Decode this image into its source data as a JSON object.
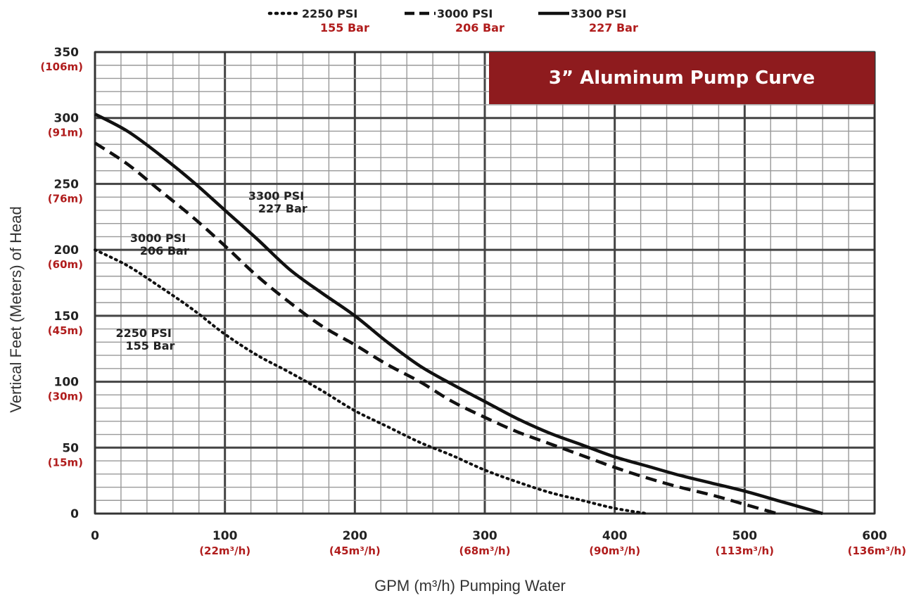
{
  "chart_data": {
    "type": "line",
    "title": "3” Aluminum Pump Curve",
    "xlabel": "GPM (m³/h) Pumping Water",
    "ylabel": "Vertical Feet (Meters) of Head",
    "xlim": [
      0,
      600
    ],
    "ylim": [
      0,
      350
    ],
    "grid": true,
    "legend_position": "top",
    "x_ticks": [
      {
        "value": 0,
        "label": "0",
        "sub": ""
      },
      {
        "value": 100,
        "label": "100",
        "sub": "(22m³/h)"
      },
      {
        "value": 200,
        "label": "200",
        "sub": "(45m³/h)"
      },
      {
        "value": 300,
        "label": "300",
        "sub": "(68m³/h)"
      },
      {
        "value": 400,
        "label": "400",
        "sub": "(90m³/h)"
      },
      {
        "value": 500,
        "label": "500",
        "sub": "(113m³/h)"
      },
      {
        "value": 600,
        "label": "600",
        "sub": "(136m³/h)"
      }
    ],
    "y_ticks": [
      {
        "value": 0,
        "label": "0",
        "sub": ""
      },
      {
        "value": 50,
        "label": "50",
        "sub": "(15m)"
      },
      {
        "value": 100,
        "label": "100",
        "sub": "(30m)"
      },
      {
        "value": 150,
        "label": "150",
        "sub": "(45m)"
      },
      {
        "value": 200,
        "label": "200",
        "sub": "(60m)"
      },
      {
        "value": 250,
        "label": "250",
        "sub": "(76m)"
      },
      {
        "value": 300,
        "label": "300",
        "sub": "(91m)"
      },
      {
        "value": 350,
        "label": "350",
        "sub": "(106m)"
      }
    ],
    "series": [
      {
        "name": "2250 PSI",
        "name_sub": "155 Bar",
        "style": "dotted",
        "color": "#111111",
        "points": [
          [
            0,
            200
          ],
          [
            25,
            188
          ],
          [
            50,
            172
          ],
          [
            75,
            155
          ],
          [
            100,
            136
          ],
          [
            125,
            120
          ],
          [
            150,
            107
          ],
          [
            175,
            93
          ],
          [
            200,
            78
          ],
          [
            225,
            66
          ],
          [
            250,
            54
          ],
          [
            275,
            44
          ],
          [
            300,
            33
          ],
          [
            325,
            24
          ],
          [
            350,
            16
          ],
          [
            375,
            10
          ],
          [
            400,
            4
          ],
          [
            425,
            0
          ]
        ]
      },
      {
        "name": "3000 PSI",
        "name_sub": "206 Bar",
        "style": "dashed",
        "color": "#111111",
        "points": [
          [
            0,
            281
          ],
          [
            25,
            265
          ],
          [
            50,
            245
          ],
          [
            75,
            225
          ],
          [
            100,
            203
          ],
          [
            125,
            180
          ],
          [
            150,
            160
          ],
          [
            175,
            142
          ],
          [
            200,
            128
          ],
          [
            225,
            113
          ],
          [
            250,
            100
          ],
          [
            275,
            85
          ],
          [
            300,
            73
          ],
          [
            325,
            62
          ],
          [
            350,
            53
          ],
          [
            375,
            44
          ],
          [
            400,
            35
          ],
          [
            425,
            27
          ],
          [
            450,
            20
          ],
          [
            475,
            14
          ],
          [
            500,
            7
          ],
          [
            525,
            0
          ]
        ]
      },
      {
        "name": "3300 PSI",
        "name_sub": "227 Bar",
        "style": "solid",
        "color": "#111111",
        "points": [
          [
            0,
            303
          ],
          [
            25,
            290
          ],
          [
            50,
            272
          ],
          [
            75,
            252
          ],
          [
            100,
            230
          ],
          [
            125,
            208
          ],
          [
            150,
            185
          ],
          [
            175,
            167
          ],
          [
            200,
            150
          ],
          [
            225,
            130
          ],
          [
            250,
            112
          ],
          [
            275,
            98
          ],
          [
            300,
            85
          ],
          [
            325,
            72
          ],
          [
            350,
            61
          ],
          [
            375,
            52
          ],
          [
            400,
            43
          ],
          [
            425,
            36
          ],
          [
            450,
            29
          ],
          [
            475,
            23
          ],
          [
            500,
            17
          ],
          [
            525,
            10
          ],
          [
            550,
            3
          ],
          [
            560,
            0
          ]
        ]
      }
    ],
    "annotations": [
      {
        "text": "3300 PSI",
        "sub": "227 Bar",
        "x": 118,
        "y": 238
      },
      {
        "text": "3000 PSI",
        "sub": "206 Bar",
        "x": 27,
        "y": 206
      },
      {
        "text": "2250 PSI",
        "sub": "155 Bar",
        "x": 16,
        "y": 134
      }
    ]
  },
  "colors": {
    "title_bg": "#8e1b1e",
    "metric_text": "#b01c1c",
    "grid_major": "#444444",
    "grid_minor": "#999999"
  }
}
